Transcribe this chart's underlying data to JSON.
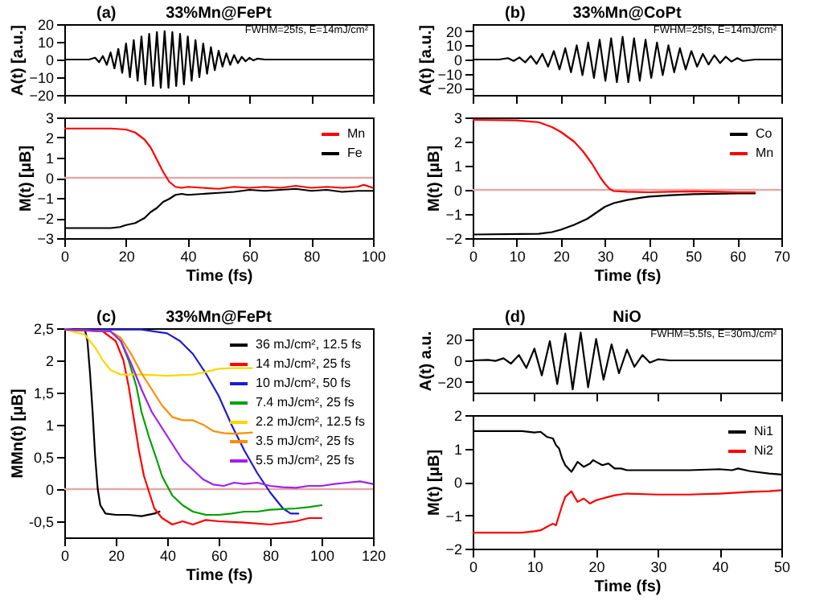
{
  "chart_data": [
    {
      "type": "line",
      "title": "33%Mn@FePt",
      "annotations": [
        "(a)",
        "FWHM=25fs, E=14mJ/cm²"
      ],
      "ylabel": "A(t) [a.u.]",
      "xlim": [
        0,
        100
      ],
      "xticks": [
        0,
        20,
        40,
        60,
        80,
        100
      ],
      "ylim": [
        -20,
        20
      ],
      "yticks": [
        -20,
        -10,
        0,
        10,
        20
      ],
      "tick_labels": "y",
      "series": [
        {
          "color": "#000000",
          "x": [
            0,
            8,
            10,
            11.25,
            12.5,
            13.75,
            15,
            16.25,
            17.5,
            18.75,
            20,
            21.25,
            22.5,
            23.75,
            25,
            26.25,
            27.5,
            28.75,
            30,
            31.25,
            32.5,
            33.75,
            35,
            36.25,
            37.5,
            38.75,
            40,
            41.25,
            42.5,
            43.75,
            45,
            46.25,
            47.5,
            48.75,
            50,
            51.25,
            52.5,
            53.75,
            55,
            56.25,
            57.5,
            58.75,
            60,
            61.25,
            62.5,
            65,
            100
          ],
          "values": [
            0,
            0,
            1,
            -1.5,
            2,
            -3,
            4,
            -5,
            6,
            -7.5,
            9,
            -10,
            11,
            -12,
            13,
            -14,
            14.5,
            -15,
            15.5,
            -16,
            16,
            -16,
            15.5,
            -15,
            14.5,
            -14,
            13,
            -12,
            11,
            -10,
            9,
            -8,
            7,
            -6,
            5,
            -4,
            3.5,
            -3,
            2.5,
            -2,
            1.5,
            -1,
            1,
            -0.5,
            0.5,
            0,
            0
          ]
        }
      ]
    },
    {
      "type": "line",
      "xlabel": "Time (fs)",
      "ylabel": "M(t) [μB]",
      "xlim": [
        0,
        100
      ],
      "xticks": [
        0,
        20,
        40,
        60,
        80,
        100
      ],
      "ylim": [
        -3,
        3
      ],
      "yticks": [
        -3,
        -2,
        -1,
        0,
        1,
        2,
        3
      ],
      "legend": "top right",
      "ref_lines": [
        {
          "axis": "y",
          "value": 0,
          "color": "#e3aaaa"
        }
      ],
      "series": [
        {
          "name": "Mn",
          "color": "#ff0000",
          "x": [
            0,
            15,
            20,
            23,
            26,
            28,
            30,
            32,
            34,
            36,
            38,
            40,
            45,
            50,
            55,
            60,
            65,
            70,
            75,
            80,
            85,
            90,
            95,
            97,
            100
          ],
          "values": [
            2.45,
            2.45,
            2.4,
            2.25,
            1.9,
            1.5,
            0.9,
            0.3,
            -0.2,
            -0.45,
            -0.5,
            -0.45,
            -0.5,
            -0.55,
            -0.45,
            -0.5,
            -0.45,
            -0.5,
            -0.4,
            -0.5,
            -0.45,
            -0.5,
            -0.45,
            -0.35,
            -0.5
          ]
        },
        {
          "name": "Fe",
          "color": "#000000",
          "x": [
            0,
            15,
            18,
            20,
            23,
            26,
            28,
            30,
            32,
            34,
            36,
            38,
            40,
            45,
            50,
            55,
            60,
            65,
            70,
            75,
            80,
            85,
            90,
            95,
            100
          ],
          "values": [
            -2.5,
            -2.5,
            -2.45,
            -2.35,
            -2.25,
            -2.0,
            -1.7,
            -1.5,
            -1.2,
            -1.05,
            -0.85,
            -0.8,
            -0.85,
            -0.8,
            -0.75,
            -0.7,
            -0.6,
            -0.65,
            -0.6,
            -0.55,
            -0.65,
            -0.6,
            -0.7,
            -0.65,
            -0.65
          ]
        }
      ]
    },
    {
      "type": "line",
      "title": "33%Mn@CoPt",
      "annotations": [
        "(b)",
        "FWHM=25fs, E=14mJ/cm²"
      ],
      "ylabel": "A(t) [a.u.]",
      "xlim": [
        0,
        70
      ],
      "xticks": [
        0,
        10,
        20,
        30,
        40,
        50,
        60,
        70
      ],
      "ylim": [
        -25,
        25
      ],
      "yticks": [
        -20,
        -10,
        0,
        10,
        20
      ],
      "tick_labels": "y",
      "series": [
        {
          "color": "#000000",
          "x": [
            0,
            6,
            8,
            9.3,
            10.6,
            11.9,
            13.2,
            14.5,
            15.8,
            17.1,
            18.4,
            19.7,
            21,
            22.3,
            23.6,
            24.9,
            26.2,
            27.5,
            28.8,
            30.1,
            31.4,
            32.7,
            34,
            35.3,
            36.6,
            37.9,
            39.2,
            40.5,
            41.8,
            43.1,
            44.4,
            45.7,
            47,
            48.3,
            49.6,
            50.9,
            52.2,
            53.5,
            54.8,
            56.1,
            57.4,
            58.7,
            60,
            61.3,
            64,
            70
          ],
          "values": [
            0,
            0,
            1,
            -1,
            1.5,
            -2,
            2.5,
            -3,
            4,
            -5,
            6,
            -7,
            8,
            -9,
            10,
            -11,
            12,
            -13,
            14,
            -15,
            15,
            -16,
            16,
            -16,
            15,
            -15,
            14,
            -13,
            12,
            -11,
            10,
            -9,
            8,
            -7,
            6,
            -5,
            4,
            -3.5,
            3,
            -2.5,
            2,
            -1.5,
            1,
            -1,
            0,
            0
          ]
        }
      ]
    },
    {
      "type": "line",
      "xlabel": "Time (fs)",
      "ylabel": "M(t) [μB]",
      "xlim": [
        0,
        70
      ],
      "xticks": [
        0,
        10,
        20,
        30,
        40,
        50,
        60,
        70
      ],
      "ylim": [
        -2,
        3
      ],
      "yticks": [
        -2,
        -1,
        0,
        1,
        2,
        3
      ],
      "legend": "top right",
      "ref_lines": [
        {
          "axis": "y",
          "value": 0,
          "color": "#e3aaaa"
        }
      ],
      "series": [
        {
          "name": "Co",
          "color": "#000000",
          "x": [
            0,
            15,
            18,
            20,
            23,
            26,
            28,
            30,
            32,
            35,
            38,
            40,
            45,
            50,
            55,
            60,
            64
          ],
          "values": [
            -1.85,
            -1.82,
            -1.75,
            -1.65,
            -1.45,
            -1.2,
            -0.95,
            -0.7,
            -0.55,
            -0.42,
            -0.33,
            -0.28,
            -0.22,
            -0.18,
            -0.16,
            -0.15,
            -0.15
          ]
        },
        {
          "name": "Mn",
          "color": "#ff0000",
          "x": [
            0,
            10,
            15,
            18,
            20,
            23,
            25,
            27,
            28,
            29,
            30,
            31,
            32,
            35,
            40,
            45,
            50,
            55,
            60,
            64
          ],
          "values": [
            2.9,
            2.88,
            2.8,
            2.6,
            2.4,
            2.0,
            1.6,
            1.1,
            0.8,
            0.5,
            0.25,
            0.05,
            -0.05,
            -0.08,
            -0.1,
            -0.08,
            -0.06,
            -0.08,
            -0.1,
            -0.1
          ]
        }
      ]
    },
    {
      "type": "line",
      "title": "33%Mn@FePt",
      "annotations": [
        "(c)"
      ],
      "xlabel": "Time (fs)",
      "ylabel": "MMn(t) [μB]",
      "xlim": [
        0,
        120
      ],
      "xticks": [
        0,
        20,
        40,
        60,
        80,
        100,
        120
      ],
      "ylim": [
        -0.75,
        2.5
      ],
      "yticks": [
        {
          "value": -0.5,
          "label": "-0,5"
        },
        0,
        {
          "value": 0.5,
          "label": "0,5"
        },
        1,
        {
          "value": 1.5,
          "label": "1,5"
        },
        2,
        {
          "value": 2.5,
          "label": "2,5"
        }
      ],
      "legend": "top right",
      "ref_lines": [
        {
          "axis": "y",
          "value": 0,
          "color": "#e3aaaa"
        }
      ],
      "series": [
        {
          "name": "36 mJ/cm², 12.5 fs",
          "color": "#000000",
          "x": [
            0,
            8,
            9,
            10,
            11,
            12,
            13,
            14,
            16,
            20,
            25,
            30,
            35,
            37
          ],
          "values": [
            2.48,
            2.48,
            2.3,
            1.8,
            1.2,
            0.5,
            0,
            -0.25,
            -0.38,
            -0.4,
            -0.4,
            -0.42,
            -0.38,
            -0.35
          ]
        },
        {
          "name": "14 mJ/cm², 25 fs",
          "color": "#ff0000",
          "x": [
            0,
            15,
            20,
            23,
            25,
            27,
            29,
            31,
            33,
            35,
            38,
            42,
            46,
            50,
            55,
            60,
            70,
            80,
            90,
            95,
            100
          ],
          "values": [
            2.48,
            2.45,
            2.3,
            2.0,
            1.6,
            1.1,
            0.6,
            0.2,
            -0.05,
            -0.3,
            -0.45,
            -0.55,
            -0.5,
            -0.55,
            -0.48,
            -0.5,
            -0.52,
            -0.55,
            -0.5,
            -0.45,
            -0.45
          ]
        },
        {
          "name": "10 mJ/cm², 50 fs",
          "color": "#1c1ccc",
          "x": [
            0,
            30,
            40,
            45,
            50,
            55,
            60,
            65,
            70,
            75,
            80,
            85,
            88,
            91
          ],
          "values": [
            2.48,
            2.48,
            2.42,
            2.3,
            2.1,
            1.8,
            1.45,
            1.0,
            0.6,
            0.25,
            -0.05,
            -0.3,
            -0.38,
            -0.38
          ]
        },
        {
          "name": "7.4 mJ/cm², 25 fs",
          "color": "#00a000",
          "x": [
            0,
            18,
            22,
            25,
            28,
            30,
            33,
            36,
            38,
            42,
            46,
            50,
            55,
            60,
            65,
            70,
            75,
            80,
            90,
            95,
            100
          ],
          "values": [
            2.48,
            2.45,
            2.3,
            2.0,
            1.6,
            1.2,
            0.8,
            0.45,
            0.2,
            -0.1,
            -0.25,
            -0.35,
            -0.4,
            -0.4,
            -0.38,
            -0.35,
            -0.35,
            -0.32,
            -0.3,
            -0.28,
            -0.25
          ]
        },
        {
          "name": "2.2 mJ/cm², 12.5 fs",
          "color": "#ffd700",
          "x": [
            0,
            8,
            12,
            15,
            18,
            22,
            30,
            40,
            50,
            55,
            60,
            65,
            73
          ],
          "values": [
            2.48,
            2.4,
            2.2,
            2.0,
            1.85,
            1.78,
            1.78,
            1.76,
            1.78,
            1.82,
            1.87,
            1.88,
            1.88
          ]
        },
        {
          "name": "3.5 mJ/cm², 25 fs",
          "color": "#ff8c00",
          "x": [
            0,
            18,
            22,
            26,
            30,
            34,
            38,
            42,
            46,
            50,
            54,
            58,
            62,
            66,
            70,
            73
          ],
          "values": [
            2.48,
            2.45,
            2.35,
            2.1,
            1.8,
            1.55,
            1.3,
            1.12,
            1.07,
            1.07,
            1.0,
            0.9,
            0.87,
            0.86,
            0.87,
            0.88
          ]
        },
        {
          "name": "5.5 mJ/cm², 25 fs",
          "color": "#a020f0",
          "x": [
            0,
            18,
            22,
            26,
            30,
            34,
            38,
            42,
            46,
            50,
            54,
            58,
            62,
            66,
            70,
            75,
            80,
            85,
            90,
            95,
            100,
            105,
            110,
            115,
            120
          ],
          "values": [
            2.48,
            2.45,
            2.3,
            1.95,
            1.55,
            1.2,
            0.95,
            0.7,
            0.45,
            0.3,
            0.15,
            0.07,
            0.05,
            0.1,
            0.08,
            0.1,
            0.05,
            0.03,
            0.02,
            0.05,
            0.05,
            0.08,
            0.1,
            0.12,
            0.08
          ]
        }
      ]
    },
    {
      "type": "line",
      "title": "NiO",
      "annotations": [
        "(d)",
        "FWHM=5.5fs, E=30mJ/cm²"
      ],
      "ylabel": "A(t) a.u.",
      "xlim": [
        0,
        50
      ],
      "xticks": [
        0,
        10,
        20,
        30,
        40,
        50
      ],
      "ylim": [
        -30,
        30
      ],
      "yticks": [
        -20,
        0,
        20
      ],
      "tick_labels": "y",
      "series": [
        {
          "color": "#000000",
          "x": [
            0,
            2.5,
            3.7,
            5,
            6.2,
            7.5,
            8.7,
            10,
            11.2,
            12.5,
            13.7,
            15,
            16.2,
            17.5,
            18.7,
            20,
            21.2,
            22.5,
            23.7,
            25,
            26.2,
            27.5,
            28.7,
            30,
            32,
            50
          ],
          "values": [
            0,
            0.5,
            -0.5,
            2,
            -3,
            5,
            -7,
            11,
            -14,
            18,
            -22,
            25,
            -27,
            26,
            -25,
            20,
            -18,
            15,
            -12,
            10,
            -6,
            5,
            -2,
            1,
            0,
            0
          ]
        }
      ]
    },
    {
      "type": "line",
      "xlabel": "Time (fs)",
      "ylabel": "M(t) [μB]",
      "xlim": [
        0,
        50
      ],
      "xticks": [
        0,
        10,
        20,
        30,
        40,
        50
      ],
      "ylim": [
        -2,
        2
      ],
      "yticks": [
        -2,
        -1,
        0,
        1,
        2
      ],
      "legend": "top right",
      "series": [
        {
          "name": "Ni1",
          "color": "#000000",
          "x": [
            0,
            8,
            10,
            11,
            12,
            13,
            13.5,
            14,
            14.5,
            15,
            16,
            16.5,
            17,
            18,
            19,
            19.5,
            20,
            21,
            22,
            23,
            24,
            25,
            30,
            35,
            40,
            42,
            43,
            45,
            48,
            50
          ],
          "values": [
            1.52,
            1.52,
            1.48,
            1.5,
            1.35,
            1.3,
            1.1,
            1.0,
            0.7,
            0.5,
            0.3,
            0.45,
            0.6,
            0.45,
            0.55,
            0.65,
            0.6,
            0.5,
            0.55,
            0.4,
            0.4,
            0.35,
            0.35,
            0.35,
            0.38,
            0.35,
            0.4,
            0.32,
            0.25,
            0.22
          ]
        },
        {
          "name": "Ni2",
          "color": "#ff0000",
          "x": [
            0,
            8,
            10,
            11,
            12,
            13,
            13.5,
            14,
            14.5,
            15,
            16,
            16.5,
            17,
            18,
            19,
            20,
            21,
            22,
            23,
            25,
            30,
            35,
            40,
            45,
            48,
            50
          ],
          "values": [
            -1.52,
            -1.52,
            -1.48,
            -1.45,
            -1.35,
            -1.25,
            -1.3,
            -1.0,
            -0.7,
            -0.45,
            -0.28,
            -0.45,
            -0.6,
            -0.5,
            -0.65,
            -0.55,
            -0.5,
            -0.45,
            -0.4,
            -0.35,
            -0.38,
            -0.38,
            -0.35,
            -0.3,
            -0.28,
            -0.25
          ]
        }
      ]
    }
  ]
}
